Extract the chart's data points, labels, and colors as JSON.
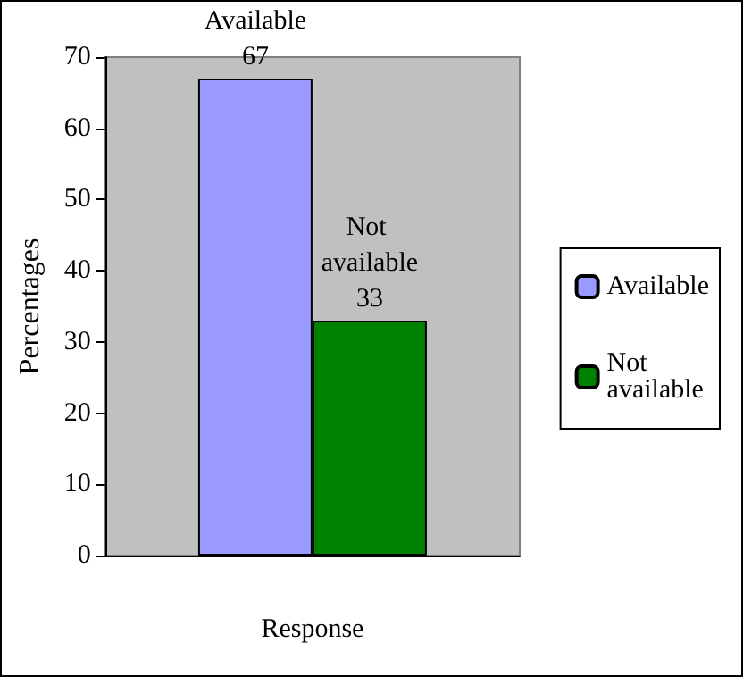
{
  "chart_data": {
    "type": "bar",
    "xlabel": "Response",
    "ylabel": "Percentages",
    "categories": [
      null
    ],
    "series": [
      {
        "name": "Available",
        "color": "#9999ff",
        "values": [
          67
        ]
      },
      {
        "name": "Not available",
        "color": "#008000",
        "values": [
          33
        ]
      }
    ],
    "ylim": [
      0,
      70
    ],
    "yticks": [
      0,
      10,
      20,
      30,
      40,
      50,
      60,
      70
    ],
    "grid": false,
    "legend": "right",
    "data_labels": true
  }
}
